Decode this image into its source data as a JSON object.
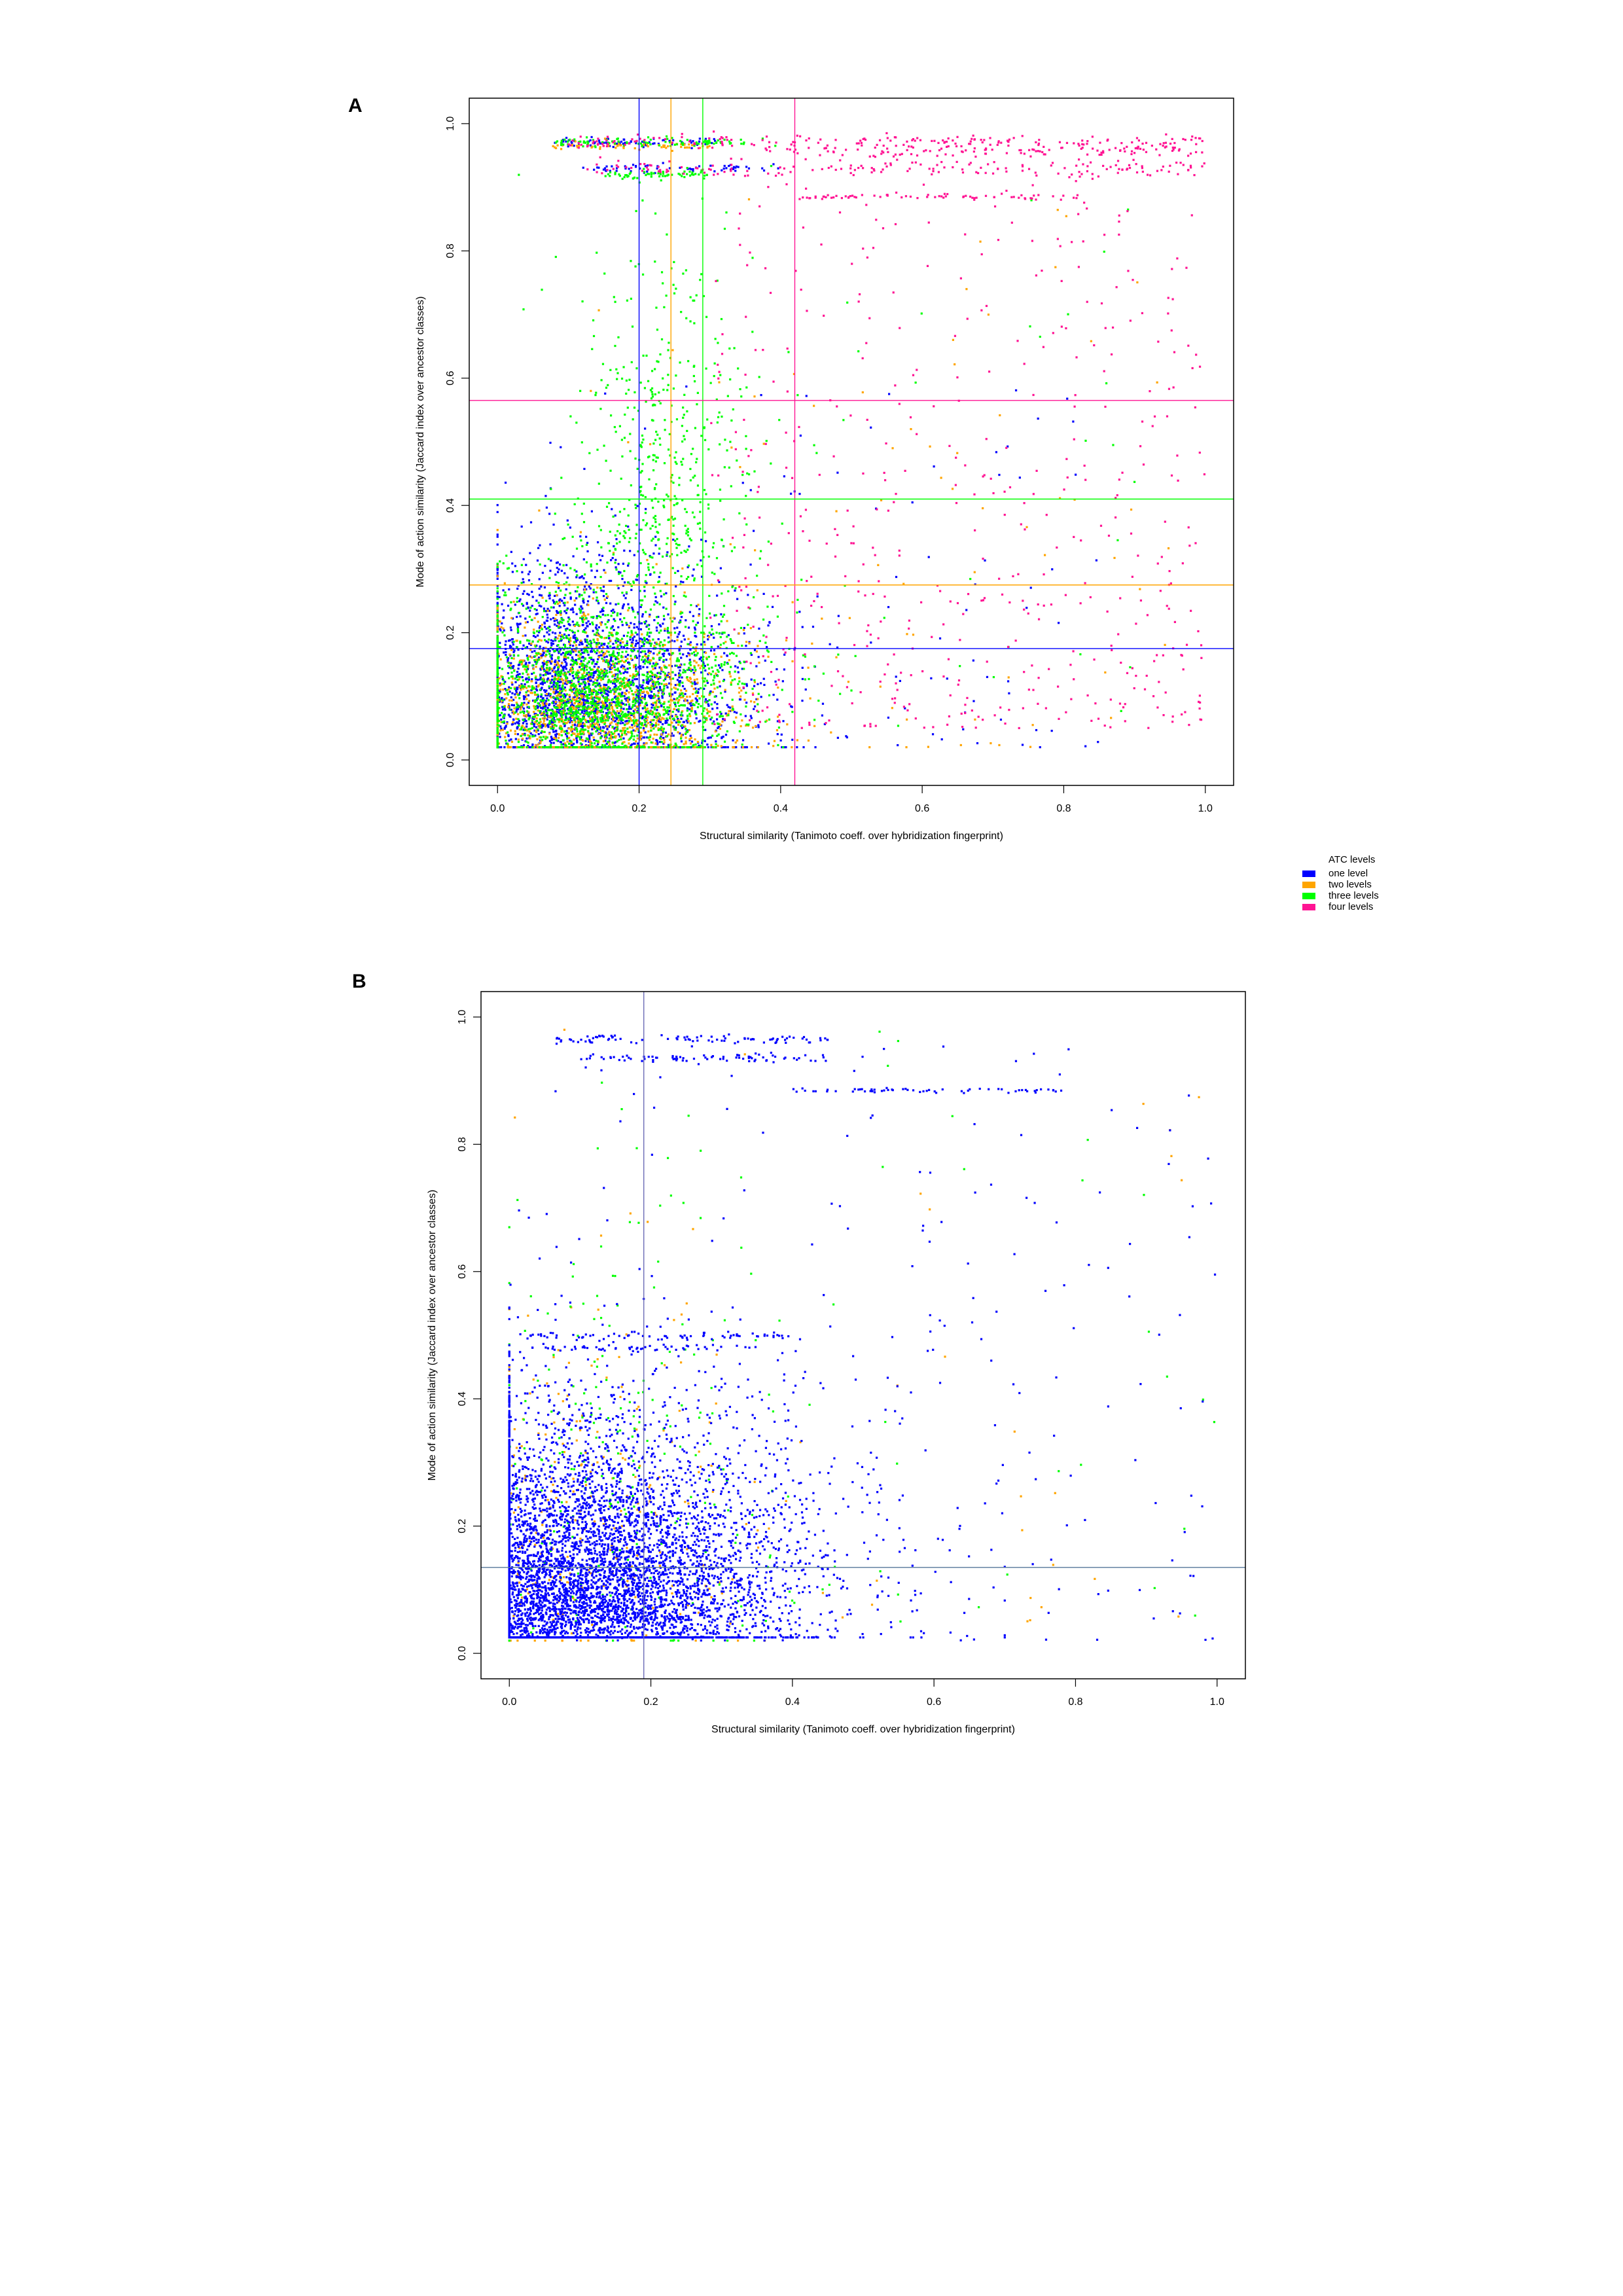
{
  "panels": {
    "a_label": "A",
    "b_label": "B"
  },
  "colors": {
    "one_level": "#0000ff",
    "two_levels": "#ffa500",
    "three_levels": "#00ff00",
    "four_levels": "#ff1493",
    "frame": "#000000"
  },
  "legend": {
    "title": "ATC levels",
    "entries": [
      {
        "label": "one level",
        "color": "#0000ff"
      },
      {
        "label": "two levels",
        "color": "#ffa500"
      },
      {
        "label": "three levels",
        "color": "#00ff00"
      },
      {
        "label": "four levels",
        "color": "#ff1493"
      }
    ]
  },
  "chart_data": [
    {
      "panel": "A",
      "type": "scatter",
      "xlabel": "Structural similarity (Tanimoto coeff. over hybridization fingerprint)",
      "ylabel": "Mode of action similarity (Jaccard index over ancestor classes)",
      "xlim": [
        -0.04,
        1.04
      ],
      "ylim": [
        -0.04,
        1.04
      ],
      "xticks": [
        "0.0",
        "0.2",
        "0.4",
        "0.6",
        "0.8",
        "1.0"
      ],
      "yticks": [
        "0.0",
        "0.2",
        "0.4",
        "0.6",
        "0.8",
        "1.0"
      ],
      "grid": false,
      "legend_position": "right, below plot",
      "series": [
        {
          "name": "one level",
          "color": "#0000ff",
          "median_x": 0.2,
          "median_y": 0.175
        },
        {
          "name": "two levels",
          "color": "#ffa500",
          "median_x": 0.245,
          "median_y": 0.275
        },
        {
          "name": "three levels",
          "color": "#00ff00",
          "median_x": 0.29,
          "median_y": 0.41
        },
        {
          "name": "four levels",
          "color": "#ff1493",
          "median_x": 0.42,
          "median_y": 0.565
        }
      ]
    },
    {
      "panel": "B",
      "type": "scatter",
      "xlabel": "Structural similarity (Tanimoto coeff. over hybridization fingerprint)",
      "ylabel": "Mode of action similarity (Jaccard index over ancestor classes)",
      "xlim": [
        -0.04,
        1.04
      ],
      "ylim": [
        -0.04,
        1.04
      ],
      "xticks": [
        "0.0",
        "0.2",
        "0.4",
        "0.6",
        "0.8",
        "1.0"
      ],
      "yticks": [
        "0.0",
        "0.2",
        "0.4",
        "0.6",
        "0.8",
        "1.0"
      ],
      "grid": false,
      "series": [
        {
          "name": "one level",
          "color": "#0000ff"
        },
        {
          "name": "two levels",
          "color": "#ffa500"
        },
        {
          "name": "three levels",
          "color": "#00ff00"
        }
      ],
      "reference_lines": {
        "x": 0.19,
        "y": 0.135
      }
    }
  ]
}
